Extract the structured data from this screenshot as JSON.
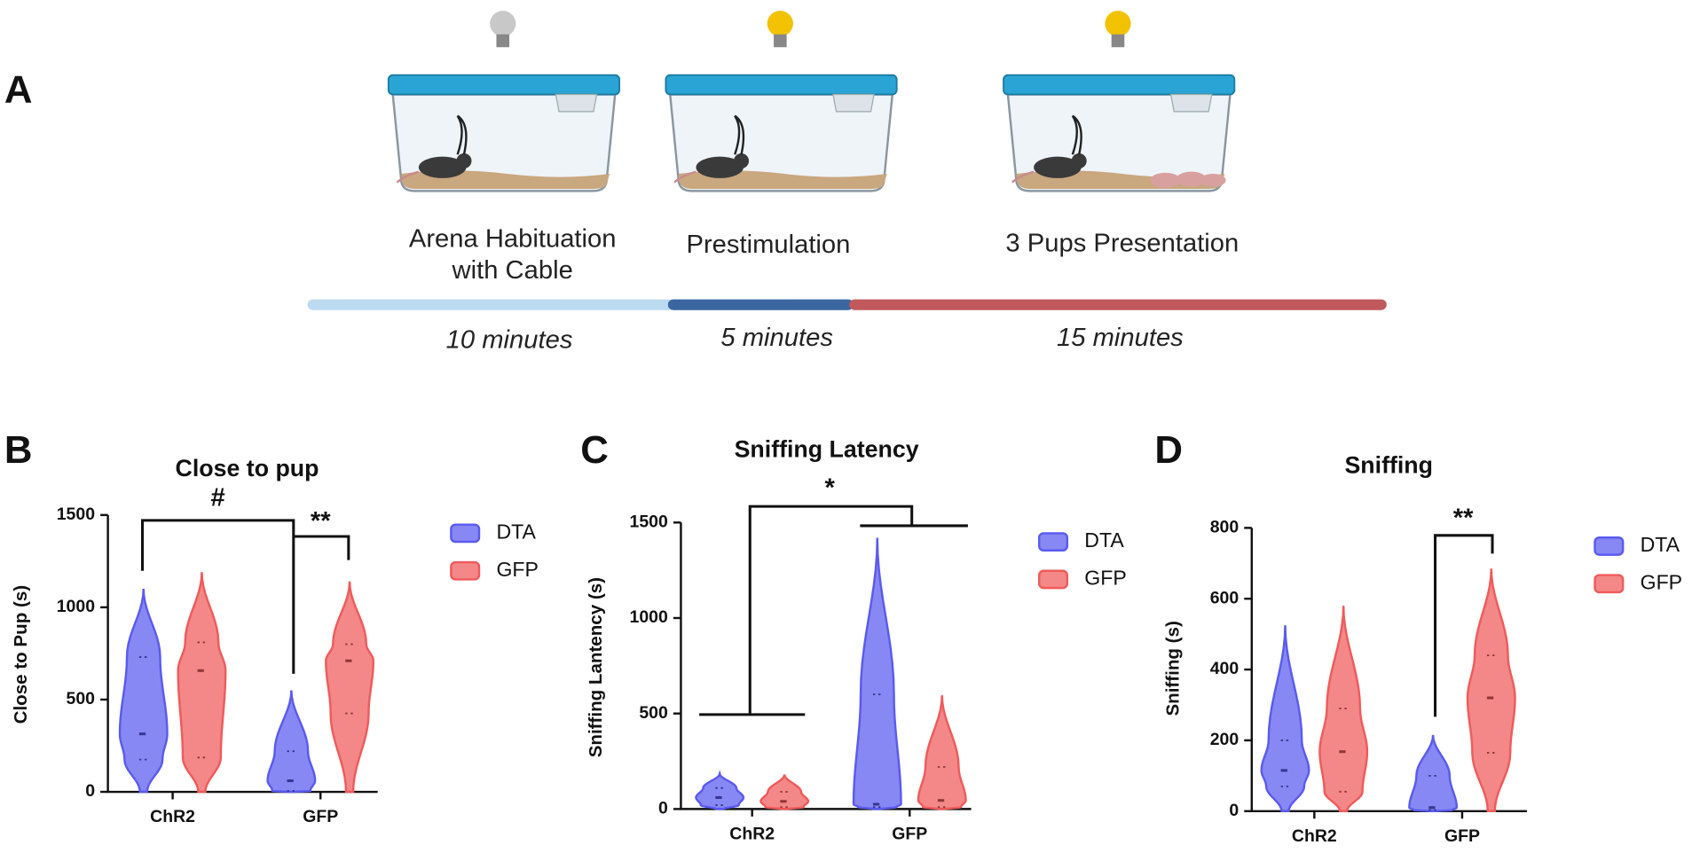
{
  "panel_a": {
    "label": "A",
    "stages": [
      {
        "label_lines": [
          "Arena Habituation",
          "with Cable"
        ],
        "duration": "10 minutes"
      },
      {
        "label_lines": [
          "Prestimulation"
        ],
        "duration": "5 minutes"
      },
      {
        "label_lines": [
          "3 Pups Presentation"
        ],
        "duration": "15 minutes"
      }
    ]
  },
  "chart_data": [
    {
      "type": "violin",
      "panel_label": "B",
      "title": "Close to pup",
      "y_label": "Close to Pup (s)",
      "categories": [
        "ChR2",
        "GFP"
      ],
      "ylim": [
        0,
        1500
      ],
      "yticks": [
        0,
        500,
        1000,
        1500
      ],
      "annotations": [
        "#",
        "**"
      ],
      "series": [
        {
          "name": "DTA",
          "color": "#5a5af0",
          "min": [
            0,
            0
          ],
          "q1": [
            175,
            5
          ],
          "median": [
            314,
            60
          ],
          "q3": [
            730,
            220
          ],
          "max": [
            1100,
            550
          ]
        },
        {
          "name": "GFP",
          "color": "#f05a5a",
          "min": [
            0,
            0
          ],
          "q1": [
            186,
            425
          ],
          "median": [
            657,
            710
          ],
          "q3": [
            810,
            800
          ],
          "max": [
            1190,
            1140
          ]
        }
      ]
    },
    {
      "type": "violin",
      "panel_label": "C",
      "title": "Sniffing Latency",
      "y_label": "Sniffing Lantency (s)",
      "categories": [
        "ChR2",
        "GFP"
      ],
      "ylim": [
        0,
        1500
      ],
      "yticks": [
        0,
        500,
        1000,
        1500
      ],
      "annotations": [
        "*"
      ],
      "series": [
        {
          "name": "DTA",
          "color": "#5a5af0",
          "min": [
            0,
            0
          ],
          "q1": [
            20,
            10
          ],
          "median": [
            60,
            25
          ],
          "q3": [
            110,
            600
          ],
          "max": [
            185,
            1420
          ]
        },
        {
          "name": "GFP",
          "color": "#f05a5a",
          "min": [
            0,
            0
          ],
          "q1": [
            10,
            10
          ],
          "median": [
            40,
            45
          ],
          "q3": [
            90,
            220
          ],
          "max": [
            180,
            595
          ]
        }
      ]
    },
    {
      "type": "violin",
      "panel_label": "D",
      "title": "Sniffing",
      "y_label": "Sniffing (s)",
      "categories": [
        "ChR2",
        "GFP"
      ],
      "ylim": [
        0,
        800
      ],
      "yticks": [
        0,
        200,
        400,
        600,
        800
      ],
      "annotations": [
        "**"
      ],
      "series": [
        {
          "name": "DTA",
          "color": "#5a5af0",
          "min": [
            0,
            0
          ],
          "q1": [
            70,
            3
          ],
          "median": [
            115,
            10
          ],
          "q3": [
            200,
            100
          ],
          "max": [
            525,
            215
          ]
        },
        {
          "name": "GFP",
          "color": "#f05a5a",
          "min": [
            0,
            0
          ],
          "q1": [
            55,
            165
          ],
          "median": [
            168,
            320
          ],
          "q3": [
            290,
            440
          ],
          "max": [
            580,
            685
          ]
        }
      ]
    }
  ]
}
